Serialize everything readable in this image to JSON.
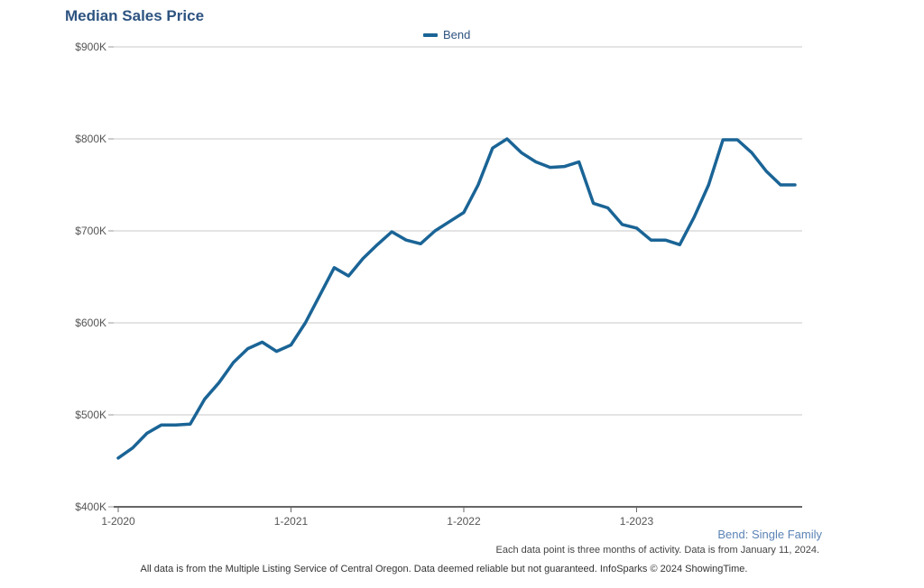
{
  "chart_data": {
    "type": "line",
    "title": "Median Sales Price",
    "subtitle": "Bend: Single Family",
    "note": "Each data point is three months of activity. Data is from January 11, 2024.",
    "footer": "All data is from the Multiple Listing Service of Central Oregon. Data deemed reliable but not guaranteed. InfoSparks © 2024 ShowingTime.",
    "legend_position": "top-center",
    "grid": true,
    "ylim": [
      400000,
      900000
    ],
    "y_ticks": [
      {
        "value": 400000,
        "label": "$400K"
      },
      {
        "value": 500000,
        "label": "$500K"
      },
      {
        "value": 600000,
        "label": "$600K"
      },
      {
        "value": 700000,
        "label": "$700K"
      },
      {
        "value": 800000,
        "label": "$800K"
      },
      {
        "value": 900000,
        "label": "$900K"
      }
    ],
    "x_ticks": [
      {
        "value": "2020-01",
        "label": "1-2020"
      },
      {
        "value": "2021-01",
        "label": "1-2021"
      },
      {
        "value": "2022-01",
        "label": "1-2022"
      },
      {
        "value": "2023-01",
        "label": "1-2023"
      }
    ],
    "xlim": [
      "2020-01",
      "2023-12"
    ],
    "x": [
      "2020-01",
      "2020-02",
      "2020-03",
      "2020-04",
      "2020-05",
      "2020-06",
      "2020-07",
      "2020-08",
      "2020-09",
      "2020-10",
      "2020-11",
      "2020-12",
      "2021-01",
      "2021-02",
      "2021-03",
      "2021-04",
      "2021-05",
      "2021-06",
      "2021-07",
      "2021-08",
      "2021-09",
      "2021-10",
      "2021-11",
      "2021-12",
      "2022-01",
      "2022-02",
      "2022-03",
      "2022-04",
      "2022-05",
      "2022-06",
      "2022-07",
      "2022-08",
      "2022-09",
      "2022-10",
      "2022-11",
      "2022-12",
      "2023-01",
      "2023-02",
      "2023-03",
      "2023-04",
      "2023-05",
      "2023-06",
      "2023-07",
      "2023-08",
      "2023-09",
      "2023-10",
      "2023-11",
      "2023-12"
    ],
    "series": [
      {
        "name": "Bend",
        "color": "#1a6496",
        "values": [
          453000,
          464000,
          480000,
          489000,
          489000,
          490000,
          517000,
          535000,
          557000,
          572000,
          579000,
          569000,
          576000,
          600000,
          630000,
          660000,
          651000,
          670000,
          685000,
          699000,
          690000,
          686000,
          700000,
          710000,
          720000,
          750000,
          790000,
          800000,
          785000,
          775000,
          769000,
          770000,
          775000,
          730000,
          725000,
          707000,
          703000,
          690000,
          690000,
          685000,
          715000,
          750000,
          799000,
          799000,
          785000,
          765000,
          750000,
          750000
        ]
      }
    ]
  }
}
